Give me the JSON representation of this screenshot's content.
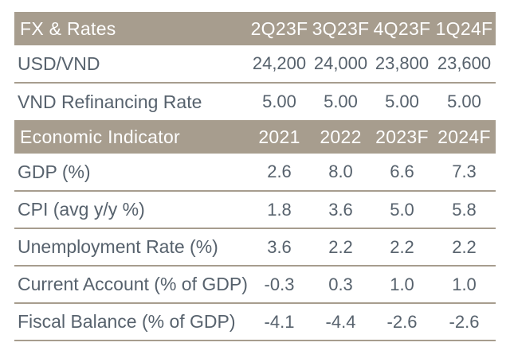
{
  "table": {
    "header_bg": "#a79d8e",
    "header_text_color": "#ffffff",
    "body_text_color": "#57626d",
    "divider_color": "#a79d8e",
    "sections": [
      {
        "header": {
          "label": "FX & Rates",
          "columns": [
            "2Q23F",
            "3Q23F",
            "4Q23F",
            "1Q24F"
          ]
        },
        "rows": [
          {
            "label": "USD/VND",
            "values": [
              "24,200",
              "24,000",
              "23,800",
              "23,600"
            ]
          },
          {
            "label": "VND Refinancing Rate",
            "values": [
              "5.00",
              "5.00",
              "5.00",
              "5.00"
            ]
          }
        ]
      },
      {
        "header": {
          "label": "Economic Indicator",
          "columns": [
            "2021",
            "2022",
            "2023F",
            "2024F"
          ]
        },
        "rows": [
          {
            "label": "GDP (%)",
            "values": [
              "2.6",
              "8.0",
              "6.6",
              "7.3"
            ]
          },
          {
            "label": "CPI (avg y/y %)",
            "values": [
              "1.8",
              "3.6",
              "5.0",
              "5.8"
            ]
          },
          {
            "label": "Unemployment Rate (%)",
            "values": [
              "3.6",
              "2.2",
              "2.2",
              "2.2"
            ]
          },
          {
            "label": "Current Account (% of GDP)",
            "values": [
              "-0.3",
              "0.3",
              "1.0",
              "1.0"
            ]
          },
          {
            "label": "Fiscal Balance (% of GDP)",
            "values": [
              "-4.1",
              "-4.4",
              "-2.6",
              "-2.6"
            ]
          }
        ]
      }
    ]
  }
}
